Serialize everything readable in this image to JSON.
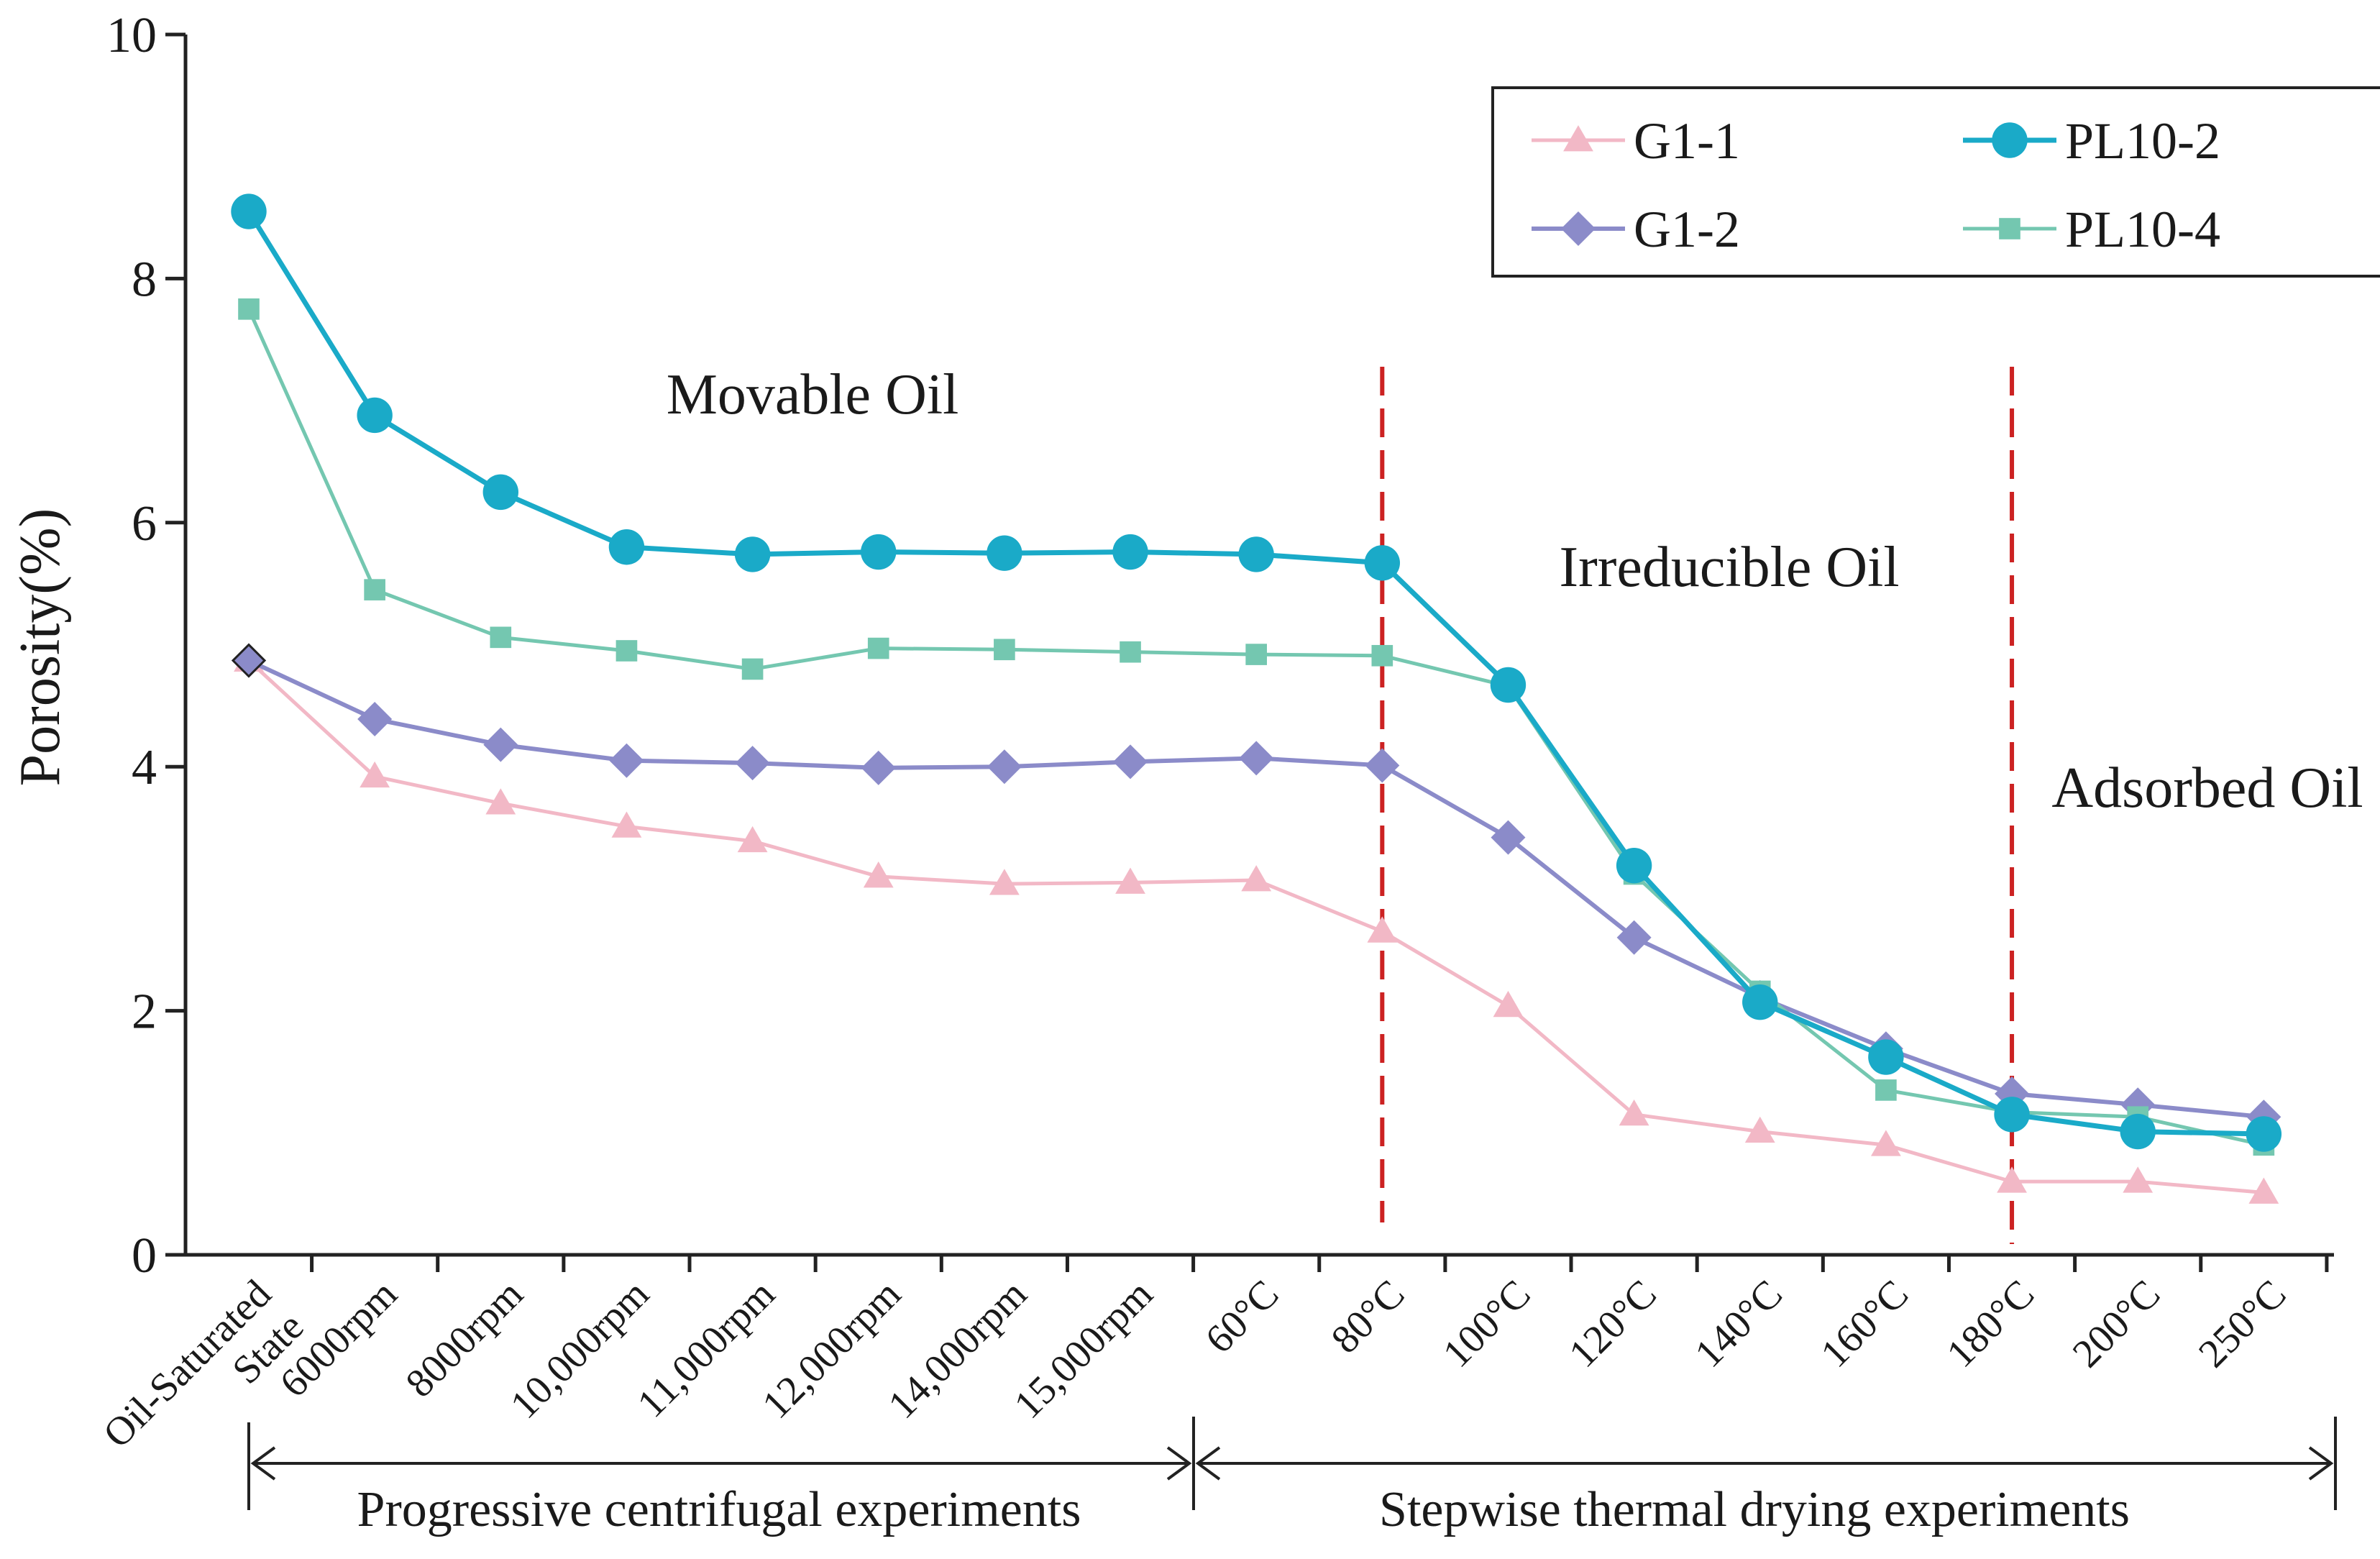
{
  "chart_data": {
    "type": "line",
    "title": "",
    "xlabel": "",
    "ylabel": "Porosity(%)",
    "ylim": [
      0,
      10
    ],
    "yticks": [
      0,
      2,
      4,
      6,
      8,
      10
    ],
    "grid": false,
    "legend_position": "top-right",
    "categories": [
      "Oil-Saturated State",
      "6000rpm",
      "8000rpm",
      "10,000rpm",
      "11,000rpm",
      "12,000rpm",
      "14,000rpm",
      "15,000rpm",
      "60°C",
      "80°C",
      "100°C",
      "120°C",
      "140°C",
      "160°C",
      "180°C",
      "200°C",
      "250°C"
    ],
    "category_lines": [
      [
        "Oil-Saturated",
        "State"
      ],
      [
        "6000rpm"
      ],
      [
        "8000rpm"
      ],
      [
        "10,000rpm"
      ],
      [
        "11,000rpm"
      ],
      [
        "12,000rpm"
      ],
      [
        "14,000rpm"
      ],
      [
        "15,000rpm"
      ],
      [
        "60°C"
      ],
      [
        "80°C"
      ],
      [
        "100°C"
      ],
      [
        "120°C"
      ],
      [
        "140°C"
      ],
      [
        "160°C"
      ],
      [
        "180°C"
      ],
      [
        "200°C"
      ],
      [
        "250°C"
      ]
    ],
    "series": [
      {
        "name": "G1-1",
        "color": "#f2b8c6",
        "marker": "triangle",
        "values": [
          4.87,
          3.92,
          3.7,
          3.51,
          3.39,
          3.1,
          3.04,
          3.05,
          3.07,
          2.65,
          2.04,
          1.15,
          1.01,
          0.9,
          0.6,
          0.6,
          0.51
        ]
      },
      {
        "name": "G1-2",
        "color": "#8b8bc9",
        "marker": "diamond",
        "values": [
          4.87,
          4.39,
          4.18,
          4.05,
          4.03,
          3.99,
          4.0,
          4.04,
          4.07,
          4.01,
          3.42,
          2.6,
          2.11,
          1.69,
          1.32,
          1.23,
          1.13
        ]
      },
      {
        "name": "PL10-2",
        "color": "#1aaac8",
        "marker": "circle",
        "values": [
          8.55,
          6.88,
          6.25,
          5.8,
          5.74,
          5.76,
          5.75,
          5.76,
          5.74,
          5.67,
          4.67,
          3.19,
          2.07,
          1.62,
          1.15,
          1.01,
          0.99
        ]
      },
      {
        "name": "PL10-4",
        "color": "#74c7b0",
        "marker": "square",
        "values": [
          7.75,
          5.45,
          5.06,
          4.95,
          4.8,
          4.97,
          4.96,
          4.94,
          4.92,
          4.91,
          4.66,
          3.12,
          2.16,
          1.35,
          1.17,
          1.13,
          0.9
        ]
      }
    ],
    "annotations": {
      "movable": "Movable Oil",
      "irreducible": "Irreducible Oil",
      "adsorbed": "Adsorbed Oil"
    },
    "region_boundaries_after_category": [
      "80°C",
      "180°C"
    ],
    "boundary_color": "#cc2222",
    "experiment_groups": {
      "centrifugal": "Progressive centrifugal experiments",
      "thermal": "Stepwise thermal drying experiments"
    }
  }
}
